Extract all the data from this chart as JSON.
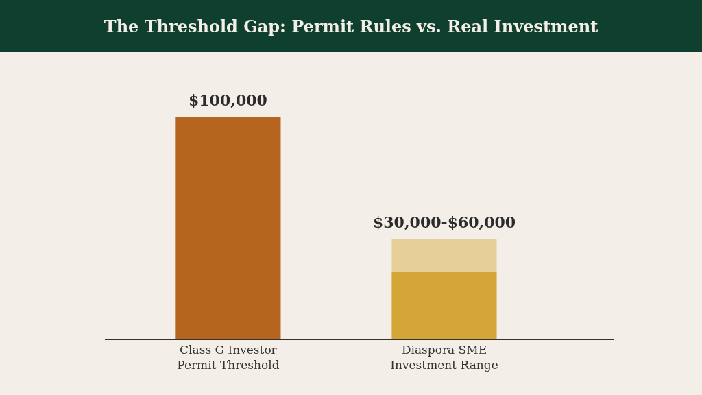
{
  "chart_data": {
    "type": "bar",
    "title": "The Threshold Gap: Permit Rules vs. Real Investment",
    "categories": [
      "Class G Investor\nPermit Threshold",
      "Diaspora SME\nInvestment Range"
    ],
    "stacked": true,
    "series": [
      {
        "colors": [
          "#b5651d",
          "#d4a537"
        ],
        "values": [
          100000,
          30000
        ],
        "value_labels": [
          "$100,000",
          null
        ]
      },
      {
        "color": "#e6cf98",
        "values": [
          null,
          15000
        ],
        "value_labels": [
          null,
          "$30,000-$60,000"
        ]
      }
    ]
  }
}
